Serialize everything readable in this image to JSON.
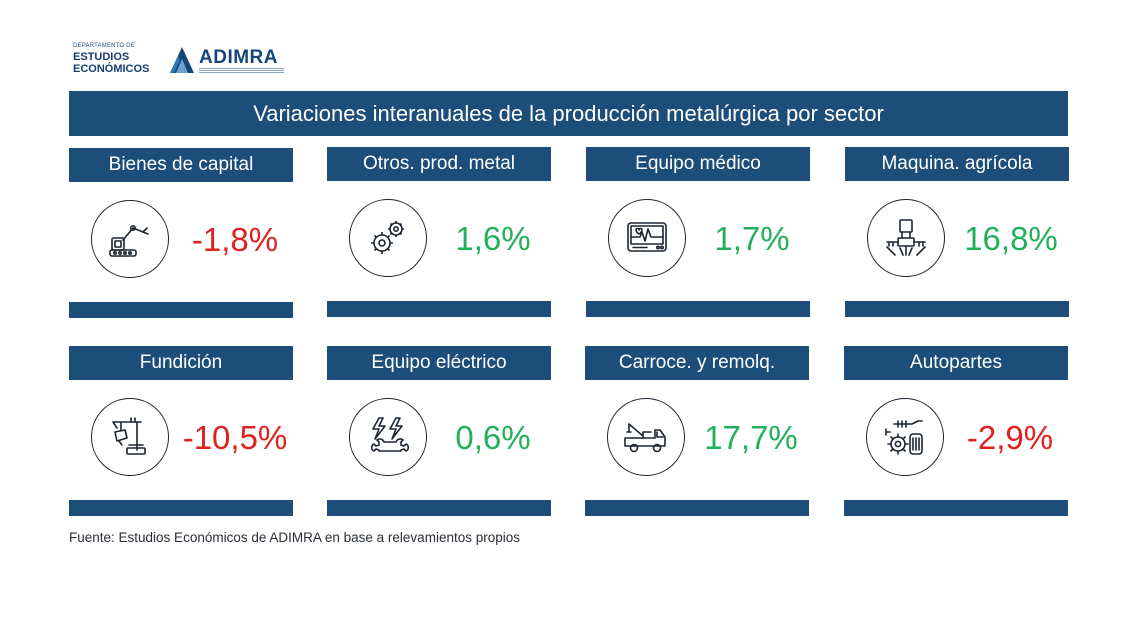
{
  "logo": {
    "dept_small": "DEPARTAMENTO DE",
    "dept_line1": "ESTUDIOS",
    "dept_line2": "ECONÓMICOS",
    "brand": "ADIMRA"
  },
  "title": "Variaciones interanuales de la producción metalúrgica por sector",
  "source": "Fuente: Estudios Económicos de ADIMRA en base a relevamientos propios",
  "colors": {
    "header": "#1c4e79",
    "negative": "#e0211f",
    "positive": "#23b05c"
  },
  "chart_data": {
    "type": "table",
    "title": "Variaciones interanuales de la producción metalúrgica por sector",
    "unit": "%",
    "sectors": [
      {
        "name": "Bienes de capital",
        "value": -1.8,
        "label": "-1,8%",
        "icon": "robotic-arm-icon"
      },
      {
        "name": "Otros. prod. metal",
        "value": 1.6,
        "label": "1,6%",
        "icon": "gears-icon"
      },
      {
        "name": "Equipo médico",
        "value": 1.7,
        "label": "1,7%",
        "icon": "heart-monitor-icon"
      },
      {
        "name": "Maquina. agrícola",
        "value": 16.8,
        "label": "16,8%",
        "icon": "crop-sprayer-icon"
      },
      {
        "name": "Fundición",
        "value": -10.5,
        "label": "-10,5%",
        "icon": "foundry-crane-icon"
      },
      {
        "name": "Equipo eléctrico",
        "value": 0.6,
        "label": "0,6%",
        "icon": "lightning-wrench-icon"
      },
      {
        "name": "Carroce. y remolq.",
        "value": 17.7,
        "label": "17,7%",
        "icon": "tow-truck-icon"
      },
      {
        "name": "Autopartes",
        "value": -2.9,
        "label": "-2,9%",
        "icon": "auto-parts-icon"
      }
    ]
  }
}
